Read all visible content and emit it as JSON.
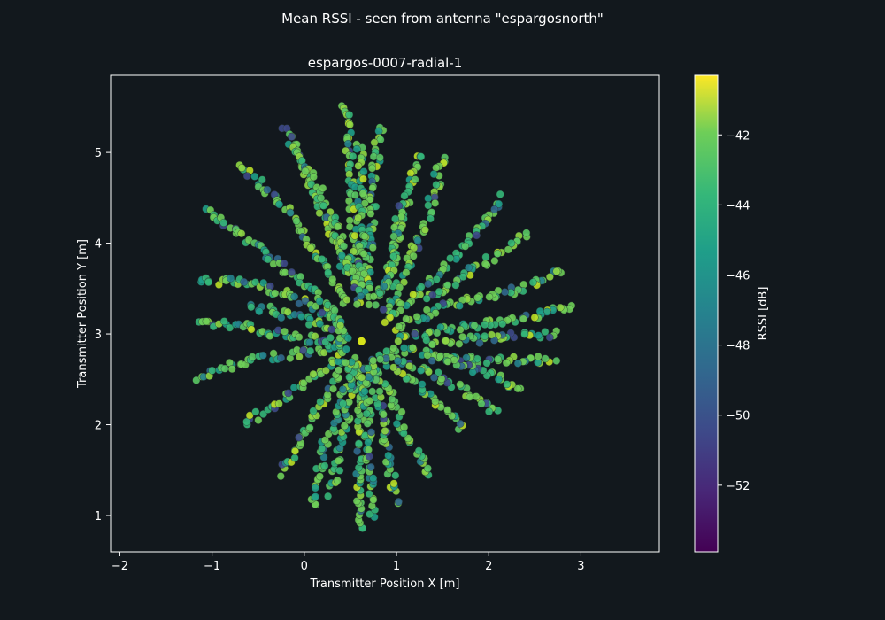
{
  "figure": {
    "suptitle": "Mean RSSI - seen from antenna \"espargosnorth\"",
    "background": "#12181d"
  },
  "chart_data": {
    "type": "scatter",
    "title": "espargos-0007-radial-1",
    "xlabel": "Transmitter Position X [m]",
    "ylabel": "Transmitter Position Y [m]",
    "xlim": [
      -2.1,
      3.85
    ],
    "ylim": [
      0.6,
      5.85
    ],
    "xticks": [
      -2,
      -1,
      0,
      1,
      2,
      3
    ],
    "yticks": [
      1,
      2,
      3,
      4,
      5
    ],
    "grid": false,
    "colormap": "viridis",
    "colorbar": {
      "label": "RSSI [dB]",
      "range": [
        -53.9,
        -40.3
      ],
      "ticks": [
        -42,
        -44,
        -46,
        -48,
        -50,
        -52
      ],
      "tick_labels": [
        "−42",
        "−44",
        "−46",
        "−48",
        "−50",
        "−52"
      ]
    },
    "antenna": {
      "x": 0.62,
      "y": 2.92,
      "rssi": -41,
      "color": "#d6e21a"
    },
    "series": [
      {
        "description_points": "radial measurement tracks; each point = transmitter position, colour = mean RSSI",
        "center": [
          0.62,
          2.92
        ],
        "tracks": [
          [
            [
              0.45,
              5.55
            ],
            [
              0.5,
              4.8
            ],
            [
              0.55,
              4.0
            ],
            [
              0.6,
              3.3
            ]
          ],
          [
            [
              0.82,
              5.28
            ],
            [
              0.75,
              4.6
            ],
            [
              0.7,
              3.9
            ],
            [
              0.66,
              3.3
            ]
          ],
          [
            [
              0.6,
              5.1
            ],
            [
              0.62,
              4.4
            ],
            [
              0.64,
              3.5
            ]
          ],
          [
            [
              -0.22,
              5.3
            ],
            [
              0.0,
              4.8
            ],
            [
              0.25,
              4.2
            ],
            [
              0.5,
              3.6
            ]
          ],
          [
            [
              -0.1,
              5.05
            ],
            [
              0.2,
              4.5
            ],
            [
              0.45,
              3.9
            ],
            [
              0.58,
              3.4
            ]
          ],
          [
            [
              1.25,
              5.0
            ],
            [
              1.1,
              4.4
            ],
            [
              0.95,
              3.8
            ],
            [
              0.8,
              3.35
            ]
          ],
          [
            [
              1.5,
              4.95
            ],
            [
              1.35,
              4.3
            ],
            [
              1.05,
              3.6
            ],
            [
              0.85,
              3.2
            ]
          ],
          [
            [
              1.05,
              4.4
            ],
            [
              0.95,
              3.7
            ],
            [
              0.75,
              3.3
            ]
          ],
          [
            [
              2.15,
              4.5
            ],
            [
              1.7,
              3.9
            ],
            [
              1.2,
              3.45
            ],
            [
              0.85,
              3.1
            ]
          ],
          [
            [
              2.4,
              4.1
            ],
            [
              1.9,
              3.75
            ],
            [
              1.3,
              3.35
            ]
          ],
          [
            [
              2.8,
              3.7
            ],
            [
              2.2,
              3.45
            ],
            [
              1.5,
              3.3
            ],
            [
              0.95,
              3.05
            ]
          ],
          [
            [
              2.9,
              3.28
            ],
            [
              2.2,
              3.15
            ],
            [
              1.5,
              3.05
            ],
            [
              0.95,
              2.95
            ]
          ],
          [
            [
              2.7,
              3.0
            ],
            [
              2.0,
              2.95
            ],
            [
              1.3,
              2.9
            ]
          ],
          [
            [
              2.7,
              2.72
            ],
            [
              2.0,
              2.7
            ],
            [
              1.3,
              2.8
            ],
            [
              0.9,
              2.85
            ]
          ],
          [
            [
              2.35,
              2.4
            ],
            [
              1.9,
              2.6
            ],
            [
              1.3,
              2.75
            ]
          ],
          [
            [
              2.1,
              2.12
            ],
            [
              1.6,
              2.45
            ],
            [
              1.1,
              2.7
            ],
            [
              0.8,
              2.8
            ]
          ],
          [
            [
              1.7,
              1.95
            ],
            [
              1.4,
              2.3
            ],
            [
              1.0,
              2.6
            ],
            [
              0.8,
              2.75
            ]
          ],
          [
            [
              1.38,
              1.42
            ],
            [
              1.1,
              1.9
            ],
            [
              0.9,
              2.4
            ],
            [
              0.7,
              2.75
            ]
          ],
          [
            [
              1.0,
              1.15
            ],
            [
              0.9,
              1.7
            ],
            [
              0.8,
              2.3
            ],
            [
              0.7,
              2.7
            ]
          ],
          [
            [
              0.62,
              0.85
            ],
            [
              0.6,
              1.5
            ],
            [
              0.62,
              2.1
            ],
            [
              0.62,
              2.7
            ]
          ],
          [
            [
              0.75,
              1.0
            ],
            [
              0.7,
              1.6
            ],
            [
              0.68,
              2.2
            ],
            [
              0.65,
              2.7
            ]
          ],
          [
            [
              0.3,
              1.25
            ],
            [
              0.4,
              1.8
            ],
            [
              0.5,
              2.3
            ],
            [
              0.58,
              2.75
            ]
          ],
          [
            [
              0.1,
              1.1
            ],
            [
              0.2,
              1.7
            ],
            [
              0.4,
              2.2
            ],
            [
              0.55,
              2.75
            ]
          ],
          [
            [
              -0.25,
              1.45
            ],
            [
              0.0,
              1.9
            ],
            [
              0.25,
              2.35
            ],
            [
              0.5,
              2.75
            ]
          ],
          [
            [
              -0.65,
              2.0
            ],
            [
              -0.2,
              2.3
            ],
            [
              0.2,
              2.6
            ],
            [
              0.5,
              2.85
            ]
          ],
          [
            [
              -1.15,
              2.52
            ],
            [
              -0.6,
              2.7
            ],
            [
              0.0,
              2.8
            ],
            [
              0.5,
              2.9
            ]
          ],
          [
            [
              -1.15,
              3.15
            ],
            [
              -0.5,
              3.05
            ],
            [
              0.0,
              2.95
            ],
            [
              0.5,
              2.95
            ]
          ],
          [
            [
              -1.15,
              3.6
            ],
            [
              -0.5,
              3.55
            ],
            [
              0.0,
              3.35
            ],
            [
              0.45,
              3.05
            ]
          ],
          [
            [
              -1.05,
              4.38
            ],
            [
              -0.5,
              3.95
            ],
            [
              0.0,
              3.55
            ],
            [
              0.45,
              3.15
            ]
          ],
          [
            [
              -0.7,
              4.85
            ],
            [
              -0.2,
              4.4
            ],
            [
              0.2,
              3.8
            ],
            [
              0.5,
              3.3
            ]
          ],
          [
            [
              -0.6,
              3.3
            ],
            [
              -0.1,
              3.2
            ],
            [
              0.4,
              3.05
            ]
          ]
        ]
      }
    ]
  }
}
